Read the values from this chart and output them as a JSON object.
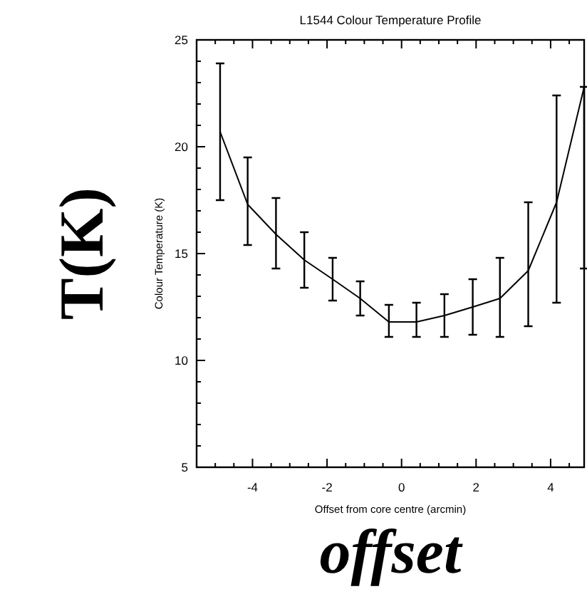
{
  "chart_data": {
    "type": "line",
    "title": "L1544 Colour Temperature Profile",
    "xlabel": "Offset from core centre (arcmin)",
    "ylabel": "Colour Temperature (K)",
    "annotations": [
      "T(K)",
      "offset"
    ],
    "x": [
      -4.87,
      -4.13,
      -3.37,
      -2.61,
      -1.85,
      -1.11,
      -0.34,
      0.4,
      1.15,
      1.91,
      2.64,
      3.4,
      4.16,
      4.9
    ],
    "series": [
      {
        "color": "#000000",
        "values": [
          20.7,
          17.3,
          15.9,
          14.7,
          13.8,
          12.9,
          11.8,
          11.8,
          12.1,
          12.5,
          12.9,
          14.2,
          17.4,
          22.8
        ],
        "errors": [
          [
            17.5,
            23.9
          ],
          [
            15.4,
            19.5
          ],
          [
            14.3,
            17.6
          ],
          [
            13.4,
            16
          ],
          [
            12.8,
            14.8
          ],
          [
            12.1,
            13.7
          ],
          [
            11.1,
            12.6
          ],
          [
            11.1,
            12.7
          ],
          [
            11.1,
            13.1
          ],
          [
            11.2,
            13.8
          ],
          [
            11.1,
            14.8
          ],
          [
            11.6,
            17.4
          ],
          [
            12.7,
            22.4
          ],
          [
            14.3,
            22.8
          ]
        ]
      }
    ],
    "xlim": [
      -5.5,
      4.9
    ],
    "ylim": [
      5,
      25
    ],
    "xticks": [
      {
        "value": -5,
        "label": null
      },
      {
        "value": -4.5,
        "label": null
      },
      -4,
      {
        "value": -3.5,
        "label": null
      },
      {
        "value": -3,
        "label": null
      },
      {
        "value": -2.5,
        "label": null
      },
      -2,
      {
        "value": -1.5,
        "label": null
      },
      {
        "value": -1,
        "label": null
      },
      {
        "value": -0.5,
        "label": null
      },
      0,
      {
        "value": 0.5,
        "label": null
      },
      {
        "value": 1,
        "label": null
      },
      {
        "value": 1.5,
        "label": null
      },
      2,
      {
        "value": 2.5,
        "label": null
      },
      {
        "value": 3,
        "label": null
      },
      {
        "value": 3.5,
        "label": null
      },
      4,
      {
        "value": 4.5,
        "label": null
      }
    ],
    "yticks": [
      5,
      {
        "value": 6,
        "label": null
      },
      {
        "value": 7,
        "label": null
      },
      {
        "value": 8,
        "label": null
      },
      {
        "value": 9,
        "label": null
      },
      10,
      {
        "value": 11,
        "label": null
      },
      {
        "value": 12,
        "label": null
      },
      {
        "value": 13,
        "label": null
      },
      {
        "value": 14,
        "label": null
      },
      15,
      {
        "value": 16,
        "label": null
      },
      {
        "value": 17,
        "label": null
      },
      {
        "value": 18,
        "label": null
      },
      {
        "value": 19,
        "label": null
      },
      20,
      {
        "value": 21,
        "label": null
      },
      {
        "value": 22,
        "label": null
      },
      {
        "value": 23,
        "label": null
      },
      {
        "value": 24,
        "label": null
      },
      25
    ],
    "grid": false,
    "marker": "none",
    "line_style": "solid"
  }
}
